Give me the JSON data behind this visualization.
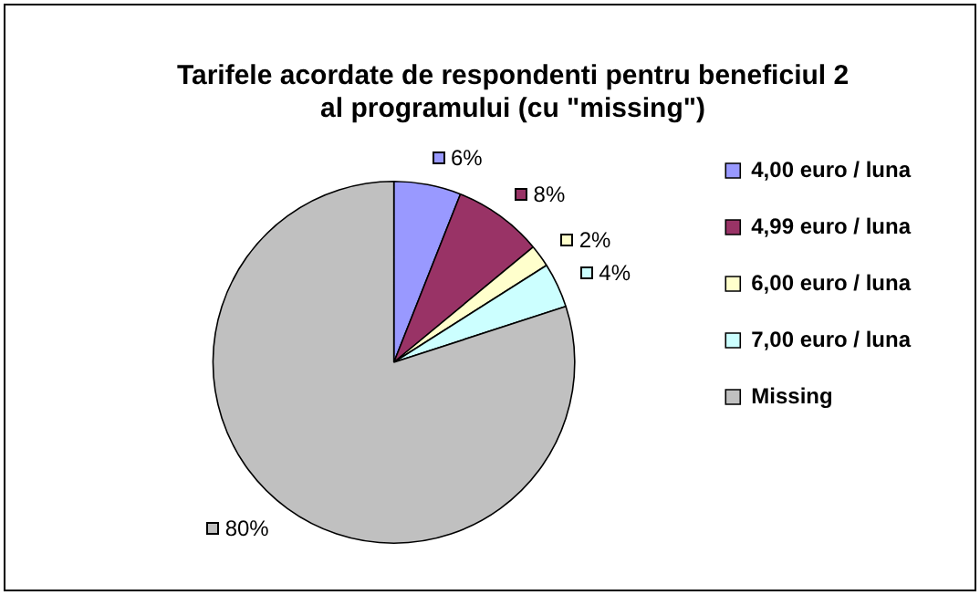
{
  "chart_data": {
    "type": "pie",
    "title": "Tarifele acordate de respondenti pentru beneficiul 2\nal programului (cu \"missing\")",
    "categories": [
      "4,00 euro / luna",
      "4,99 euro / luna",
      "6,00 euro / luna",
      "7,00 euro / luna",
      "Missing"
    ],
    "values": [
      6,
      8,
      2,
      4,
      80
    ],
    "colors": [
      "#9999ff",
      "#993366",
      "#ffffcc",
      "#ccffff",
      "#c0c0c0"
    ],
    "value_labels": [
      "6%",
      "8%",
      "2%",
      "4%",
      "80%"
    ],
    "legend": "right"
  }
}
